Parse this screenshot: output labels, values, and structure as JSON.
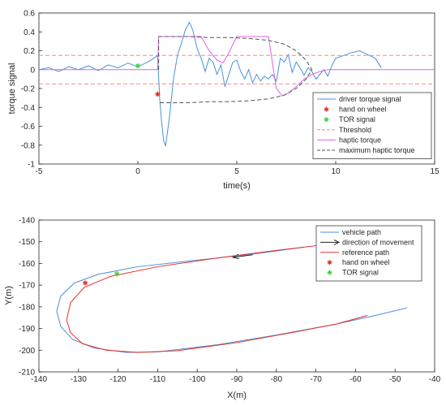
{
  "chart_data": [
    {
      "type": "line",
      "xlabel": "time(s)",
      "ylabel": "torque signal",
      "xlim": [
        -5,
        15
      ],
      "ylim": [
        -1,
        0.6
      ],
      "xticks": [
        "-5",
        "0",
        "5",
        "10",
        "15"
      ],
      "yticks": [
        "-1",
        "-0.8",
        "-0.6",
        "-0.4",
        "-0.2",
        "0",
        "0.2",
        "0.4",
        "0.6"
      ],
      "legend_position": "bottom-right",
      "series": [
        {
          "name": "driver torque signal",
          "style": "line",
          "color": "#4a90d9",
          "x": [
            -5,
            -4.5,
            -4,
            -3.5,
            -3,
            -2.5,
            -2,
            -1.5,
            -1,
            -0.5,
            0,
            0.5,
            0.8,
            1.0,
            1.1,
            1.2,
            1.3,
            1.4,
            1.6,
            1.8,
            2.0,
            2.2,
            2.4,
            2.6,
            2.7,
            2.8,
            3.0,
            3.2,
            3.4,
            3.6,
            3.8,
            4.0,
            4.2,
            4.4,
            4.6,
            4.8,
            5.0,
            5.2,
            5.4,
            5.6,
            5.8,
            6.0,
            6.2,
            6.4,
            6.6,
            6.8,
            7.0,
            7.2,
            7.4,
            7.6,
            7.8,
            8.0,
            8.2,
            8.4,
            8.6,
            8.8,
            9.0,
            9.2,
            9.4,
            9.6,
            9.8,
            10.0,
            10.4,
            10.8,
            11.2,
            11.6,
            12.0,
            12.3
          ],
          "y": [
            0,
            0.02,
            -0.02,
            0.03,
            0,
            0.04,
            -0.01,
            0.05,
            0.02,
            0.07,
            0.03,
            0.08,
            0.12,
            0.15,
            -0.3,
            -0.55,
            -0.75,
            -0.81,
            -0.5,
            -0.1,
            0.15,
            0.28,
            0.42,
            0.5,
            0.46,
            0.4,
            0.22,
            0.12,
            -0.02,
            0.12,
            0.08,
            -0.05,
            0.05,
            -0.18,
            -0.05,
            0.08,
            0.1,
            -0.02,
            -0.1,
            0.0,
            -0.14,
            -0.05,
            -0.12,
            -0.07,
            -0.1,
            -0.05,
            -0.12,
            0.12,
            0.08,
            0.16,
            -0.03,
            0.08,
            0.02,
            -0.06,
            0.02,
            -0.02,
            -0.1,
            -0.05,
            0.0,
            -0.07,
            0.04,
            0.12,
            0.15,
            0.18,
            0.2,
            0.16,
            0.12,
            0.02
          ]
        },
        {
          "name": "hand on wheel",
          "style": "marker",
          "marker": "*",
          "color": "#e8302a",
          "x": [
            1.0
          ],
          "y": [
            -0.26
          ]
        },
        {
          "name": "TOR signal",
          "style": "marker",
          "marker": "*",
          "color": "#3fd13f",
          "x": [
            0.0
          ],
          "y": [
            0.04
          ]
        },
        {
          "name": "Threshold",
          "style": "dashed",
          "color": "#f28b7e",
          "x": [
            -5,
            15,
            null,
            -5,
            15
          ],
          "y": [
            0.15,
            0.15,
            null,
            -0.15,
            -0.15
          ]
        },
        {
          "name": "haptic torque",
          "style": "line",
          "color": "#e060e8",
          "x": [
            -5,
            1.0,
            1.05,
            2.7,
            3.2,
            3.6,
            4.0,
            4.3,
            4.6,
            5.0,
            5.4,
            6.6,
            7.0,
            7.3,
            7.6,
            8.0,
            8.4,
            8.8,
            9.2,
            9.6,
            10.0,
            15
          ],
          "y": [
            0,
            0,
            0.35,
            0.35,
            0.35,
            0.2,
            0.1,
            0.07,
            0.18,
            0.35,
            0.35,
            0.35,
            -0.2,
            -0.28,
            -0.25,
            -0.18,
            -0.1,
            -0.05,
            -0.02,
            0.0,
            0,
            0
          ]
        },
        {
          "name": "maximum haptic torque",
          "style": "dashed",
          "color": "#555555",
          "x": [
            1.05,
            1.05,
            1.6,
            2.6,
            3.6,
            4.6,
            5.6,
            6.6,
            7.4,
            8.0,
            8.5,
            8.8,
            8.5,
            8.0,
            7.4,
            6.6,
            5.6,
            4.6,
            3.6,
            2.6,
            1.6,
            1.05
          ],
          "y": [
            0,
            0.35,
            0.35,
            0.35,
            0.34,
            0.34,
            0.33,
            0.31,
            0.27,
            0.2,
            0.1,
            0,
            -0.1,
            -0.2,
            -0.27,
            -0.31,
            -0.33,
            -0.34,
            -0.34,
            -0.35,
            -0.35,
            -0.35
          ]
        }
      ]
    },
    {
      "type": "line",
      "xlabel": "X(m)",
      "ylabel": "Y(m)",
      "xlim": [
        -140,
        -40
      ],
      "ylim": [
        -210,
        -140
      ],
      "xticks": [
        "-140",
        "-130",
        "-120",
        "-110",
        "-100",
        "-90",
        "-80",
        "-70",
        "-60",
        "-50",
        "-40"
      ],
      "yticks": [
        "-210",
        "-200",
        "-190",
        "-180",
        "-170",
        "-160",
        "-150",
        "-140"
      ],
      "legend_position": "top-right",
      "series": [
        {
          "name": "vehicle path",
          "style": "line",
          "color": "#4a90d9",
          "x": [
            -73,
            -85,
            -100,
            -115,
            -125,
            -131,
            -134.5,
            -135.5,
            -134.5,
            -131.5,
            -126,
            -118,
            -110,
            -95,
            -80,
            -65,
            -55,
            -47
          ],
          "y": [
            -152.5,
            -155.5,
            -158.5,
            -161.5,
            -165,
            -169,
            -175,
            -182,
            -189,
            -195,
            -199,
            -201,
            -200.8,
            -197.5,
            -193,
            -188,
            -184,
            -180.5
          ]
        },
        {
          "name": "direction of movement",
          "style": "arrow",
          "color": "#262626",
          "x": [
            -86,
            -91
          ],
          "y": [
            -156,
            -157.2
          ]
        },
        {
          "name": "reference path",
          "style": "line",
          "color": "#e8302a",
          "x": [
            -64,
            -80,
            -95,
            -110,
            -122,
            -128.5,
            -132,
            -133,
            -132,
            -129,
            -123,
            -115,
            -105,
            -90,
            -75,
            -65,
            -57
          ],
          "y": [
            -150.5,
            -154,
            -157.5,
            -161.5,
            -166,
            -171,
            -178,
            -186,
            -192,
            -197,
            -200,
            -201,
            -200.2,
            -196.5,
            -191.5,
            -188,
            -184
          ]
        },
        {
          "name": "hand on wheel",
          "style": "marker",
          "marker": "*",
          "color": "#e8302a",
          "x": [
            -128.3
          ],
          "y": [
            -169
          ]
        },
        {
          "name": "TOR signal",
          "style": "marker",
          "marker": "*",
          "color": "#3fd13f",
          "x": [
            -120.3
          ],
          "y": [
            -164.8
          ]
        }
      ]
    }
  ]
}
